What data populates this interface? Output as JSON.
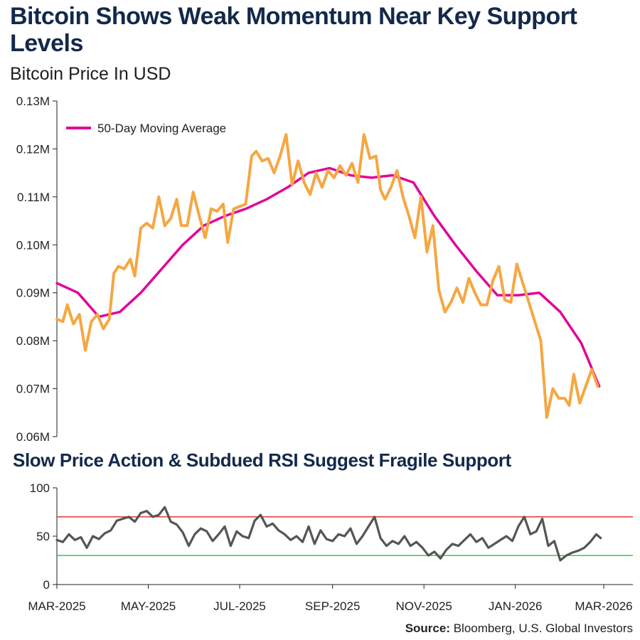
{
  "header": {
    "title": "Bitcoin Shows Weak Momentum Near Key Support Levels",
    "subtitle": "Bitcoin Price In USD"
  },
  "rsi_section": {
    "title": "Slow Price Action & Subdued RSI Suggest Fragile Support"
  },
  "footer": {
    "source_label": "Source:",
    "source_text": "Bloomberg, U.S. Global Investors"
  },
  "colors": {
    "price": "#f5a742",
    "moving_average": "#e0059a",
    "rsi": "#555555",
    "overbought_line": "#e02020",
    "oversold_line": "#22cc22",
    "title": "#13294b"
  },
  "chart_data": [
    {
      "type": "line",
      "title": "Bitcoin Price In USD",
      "x_ticks": [
        "MAR-2025",
        "MAY-2025",
        "JUL-2025",
        "SEP-2025",
        "NOV-2025",
        "JAN-2026",
        "MAR-2026"
      ],
      "ylim": [
        60000,
        130000
      ],
      "y_ticks": [
        60000,
        70000,
        80000,
        90000,
        100000,
        110000,
        120000,
        130000
      ],
      "y_tick_labels": [
        "0.06M",
        "0.07M",
        "0.08M",
        "0.09M",
        "0.10M",
        "0.11M",
        "0.12M",
        "0.13M"
      ],
      "legend": {
        "label": "50-Day Moving Average",
        "placement": "top-left"
      },
      "grid": false,
      "series": [
        {
          "name": "Price",
          "x": [
            "2025-03-01",
            "2025-03-05",
            "2025-03-08",
            "2025-03-12",
            "2025-03-16",
            "2025-03-20",
            "2025-03-24",
            "2025-03-28",
            "2025-04-01",
            "2025-04-05",
            "2025-04-08",
            "2025-04-11",
            "2025-04-15",
            "2025-04-19",
            "2025-04-22",
            "2025-04-26",
            "2025-04-30",
            "2025-05-04",
            "2025-05-08",
            "2025-05-12",
            "2025-05-16",
            "2025-05-20",
            "2025-05-23",
            "2025-05-27",
            "2025-05-31",
            "2025-06-04",
            "2025-06-08",
            "2025-06-12",
            "2025-06-16",
            "2025-06-20",
            "2025-06-23",
            "2025-06-27",
            "2025-07-01",
            "2025-07-05",
            "2025-07-09",
            "2025-07-12",
            "2025-07-16",
            "2025-07-20",
            "2025-07-24",
            "2025-07-28",
            "2025-08-01",
            "2025-08-05",
            "2025-08-09",
            "2025-08-13",
            "2025-08-17",
            "2025-08-21",
            "2025-08-25",
            "2025-08-29",
            "2025-09-02",
            "2025-09-06",
            "2025-09-10",
            "2025-09-14",
            "2025-09-18",
            "2025-09-22",
            "2025-09-26",
            "2025-09-30",
            "2025-10-03",
            "2025-10-06",
            "2025-10-10",
            "2025-10-14",
            "2025-10-18",
            "2025-10-22",
            "2025-10-26",
            "2025-10-30",
            "2025-11-03",
            "2025-11-07",
            "2025-11-11",
            "2025-11-15",
            "2025-11-19",
            "2025-11-23",
            "2025-11-27",
            "2025-12-01",
            "2025-12-05",
            "2025-12-09",
            "2025-12-13",
            "2025-12-17",
            "2025-12-21",
            "2025-12-25",
            "2025-12-29",
            "2026-01-02",
            "2026-01-06",
            "2026-01-10",
            "2026-01-14",
            "2026-01-18",
            "2026-01-22",
            "2026-01-26",
            "2026-01-30",
            "2026-02-03",
            "2026-02-06",
            "2026-02-09",
            "2026-02-13",
            "2026-02-17",
            "2026-02-21",
            "2026-02-25"
          ],
          "values": [
            84500,
            84000,
            87500,
            83500,
            85500,
            78000,
            84000,
            85500,
            82500,
            84500,
            94000,
            95500,
            95000,
            97000,
            93500,
            103500,
            104500,
            103500,
            110000,
            104000,
            105500,
            109500,
            104000,
            104000,
            111000,
            106000,
            101500,
            107500,
            107000,
            108500,
            100500,
            107500,
            108000,
            108500,
            118500,
            119500,
            117500,
            118000,
            115000,
            118500,
            123000,
            112500,
            117500,
            113000,
            110500,
            115000,
            112000,
            115500,
            114000,
            116500,
            114500,
            117000,
            113000,
            123000,
            118000,
            118500,
            111500,
            109500,
            112000,
            115500,
            110000,
            106000,
            101500,
            110000,
            98500,
            104000,
            90500,
            86000,
            88000,
            91000,
            88000,
            93000,
            90000,
            87500,
            87500,
            92500,
            95500,
            88500,
            88000,
            96000,
            92000,
            88000,
            84000,
            80000,
            64000,
            70000,
            68000,
            68000,
            66500,
            73000,
            67000,
            70500,
            74000,
            70500
          ]
        },
        {
          "name": "50-Day Moving Average",
          "x": [
            "2025-03-01",
            "2025-03-15",
            "2025-03-29",
            "2025-04-12",
            "2025-04-26",
            "2025-05-10",
            "2025-05-24",
            "2025-06-07",
            "2025-06-21",
            "2025-07-05",
            "2025-07-19",
            "2025-08-02",
            "2025-08-16",
            "2025-08-30",
            "2025-09-13",
            "2025-09-27",
            "2025-10-11",
            "2025-10-25",
            "2025-11-08",
            "2025-11-22",
            "2025-12-06",
            "2025-12-20",
            "2026-01-03",
            "2026-01-17",
            "2026-01-31",
            "2026-02-14",
            "2026-02-26"
          ],
          "values": [
            92000,
            90000,
            85000,
            86000,
            90000,
            95000,
            100000,
            104000,
            106000,
            107500,
            109500,
            112000,
            115000,
            116000,
            114500,
            114000,
            114500,
            113000,
            106000,
            100000,
            94500,
            89500,
            89500,
            90000,
            86000,
            79500,
            70500
          ]
        }
      ]
    },
    {
      "type": "line",
      "title": "Slow Price Action & Subdued RSI Suggest Fragile Support",
      "x_ticks": [
        "MAR-2025",
        "MAY-2025",
        "JUL-2025",
        "SEP-2025",
        "NOV-2025",
        "JAN-2026",
        "MAR-2026"
      ],
      "ylim": [
        0,
        100
      ],
      "y_ticks": [
        0,
        50,
        100
      ],
      "reference_lines": [
        70,
        30
      ],
      "grid": false,
      "series": [
        {
          "name": "RSI",
          "x": [
            "2025-03-01",
            "2025-03-05",
            "2025-03-09",
            "2025-03-13",
            "2025-03-17",
            "2025-03-21",
            "2025-03-25",
            "2025-03-29",
            "2025-04-02",
            "2025-04-06",
            "2025-04-10",
            "2025-04-14",
            "2025-04-18",
            "2025-04-22",
            "2025-04-26",
            "2025-04-30",
            "2025-05-04",
            "2025-05-08",
            "2025-05-12",
            "2025-05-16",
            "2025-05-20",
            "2025-05-24",
            "2025-05-28",
            "2025-06-01",
            "2025-06-05",
            "2025-06-09",
            "2025-06-13",
            "2025-06-17",
            "2025-06-21",
            "2025-06-25",
            "2025-06-29",
            "2025-07-03",
            "2025-07-07",
            "2025-07-11",
            "2025-07-15",
            "2025-07-19",
            "2025-07-23",
            "2025-07-27",
            "2025-07-31",
            "2025-08-04",
            "2025-08-08",
            "2025-08-12",
            "2025-08-16",
            "2025-08-20",
            "2025-08-24",
            "2025-08-28",
            "2025-09-01",
            "2025-09-05",
            "2025-09-09",
            "2025-09-13",
            "2025-09-17",
            "2025-09-21",
            "2025-09-25",
            "2025-09-29",
            "2025-10-03",
            "2025-10-07",
            "2025-10-11",
            "2025-10-15",
            "2025-10-19",
            "2025-10-23",
            "2025-10-27",
            "2025-10-31",
            "2025-11-04",
            "2025-11-08",
            "2025-11-12",
            "2025-11-16",
            "2025-11-20",
            "2025-11-24",
            "2025-11-28",
            "2025-12-02",
            "2025-12-06",
            "2025-12-10",
            "2025-12-14",
            "2025-12-18",
            "2025-12-22",
            "2025-12-26",
            "2025-12-30",
            "2026-01-03",
            "2026-01-07",
            "2026-01-11",
            "2026-01-15",
            "2026-01-19",
            "2026-01-23",
            "2026-01-27",
            "2026-01-31",
            "2026-02-04",
            "2026-02-08",
            "2026-02-12",
            "2026-02-16",
            "2026-02-20",
            "2026-02-24",
            "2026-02-27"
          ],
          "values": [
            46,
            44,
            52,
            46,
            49,
            38,
            50,
            47,
            53,
            56,
            66,
            68,
            70,
            65,
            74,
            76,
            70,
            72,
            80,
            65,
            62,
            54,
            40,
            52,
            58,
            55,
            45,
            52,
            60,
            40,
            55,
            50,
            48,
            66,
            72,
            60,
            63,
            56,
            52,
            46,
            50,
            44,
            60,
            42,
            56,
            47,
            45,
            52,
            50,
            58,
            42,
            50,
            60,
            70,
            48,
            40,
            45,
            42,
            50,
            40,
            44,
            38,
            30,
            34,
            27,
            36,
            42,
            40,
            46,
            52,
            44,
            48,
            38,
            42,
            46,
            50,
            45,
            60,
            70,
            52,
            55,
            68,
            40,
            45,
            25,
            30,
            33,
            35,
            38,
            44,
            52,
            48
          ]
        }
      ]
    }
  ]
}
